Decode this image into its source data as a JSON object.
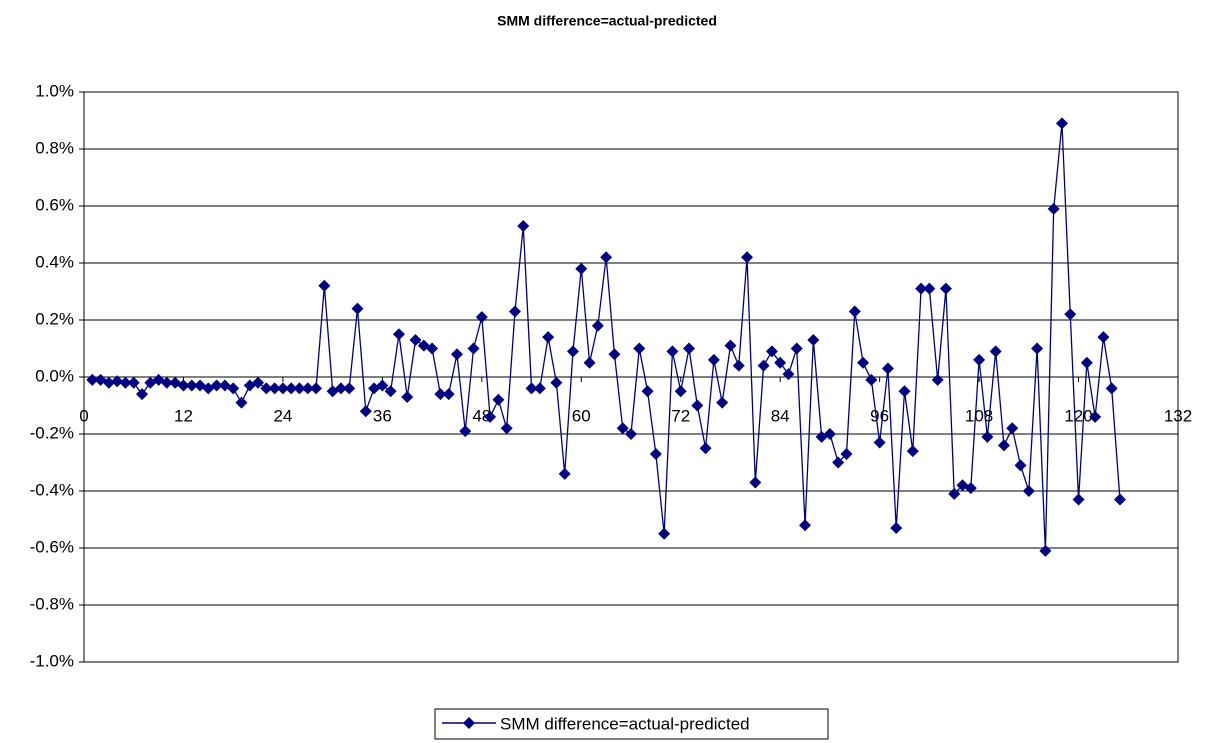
{
  "chart_data": {
    "type": "line",
    "title": "SMM difference=actual-predicted",
    "x": [
      1,
      2,
      3,
      4,
      5,
      6,
      7,
      8,
      9,
      10,
      11,
      12,
      13,
      14,
      15,
      16,
      17,
      18,
      19,
      20,
      21,
      22,
      23,
      24,
      25,
      26,
      27,
      28,
      29,
      30,
      31,
      32,
      33,
      34,
      35,
      36,
      37,
      38,
      39,
      40,
      41,
      42,
      43,
      44,
      45,
      46,
      47,
      48,
      49,
      50,
      51,
      52,
      53,
      54,
      55,
      56,
      57,
      58,
      59,
      60,
      61,
      62,
      63,
      64,
      65,
      66,
      67,
      68,
      69,
      70,
      71,
      72,
      73,
      74,
      75,
      76,
      77,
      78,
      79,
      80,
      81,
      82,
      83,
      84,
      85,
      86,
      87,
      88,
      89,
      90,
      91,
      92,
      93,
      94,
      95,
      96,
      97,
      98,
      99,
      100,
      101,
      102,
      103,
      104,
      105,
      106,
      107,
      108,
      109,
      110,
      111,
      112,
      113,
      114,
      115,
      116,
      117,
      118,
      119,
      120,
      121,
      122,
      123,
      124,
      125
    ],
    "series": [
      {
        "name": "SMM difference=actual-predicted",
        "color": "#000080",
        "values": [
          -0.01,
          -0.01,
          -0.02,
          -0.015,
          -0.02,
          -0.02,
          -0.06,
          -0.02,
          -0.01,
          -0.02,
          -0.02,
          -0.03,
          -0.03,
          -0.03,
          -0.04,
          -0.03,
          -0.03,
          -0.04,
          -0.09,
          -0.03,
          -0.02,
          -0.04,
          -0.04,
          -0.04,
          -0.04,
          -0.04,
          -0.04,
          -0.04,
          0.32,
          -0.05,
          -0.04,
          -0.04,
          0.24,
          -0.12,
          -0.04,
          -0.03,
          -0.05,
          0.15,
          -0.07,
          0.13,
          0.11,
          0.1,
          -0.06,
          -0.06,
          0.08,
          -0.19,
          0.1,
          0.21,
          -0.14,
          -0.08,
          -0.18,
          0.23,
          0.53,
          -0.04,
          -0.04,
          0.14,
          -0.02,
          -0.34,
          0.09,
          0.38,
          0.05,
          0.18,
          0.42,
          0.08,
          -0.18,
          -0.2,
          0.1,
          -0.05,
          -0.27,
          -0.55,
          0.09,
          -0.05,
          0.1,
          -0.1,
          -0.25,
          0.06,
          -0.09,
          0.11,
          0.04,
          0.42,
          -0.37,
          0.04,
          0.09,
          0.05,
          0.01,
          0.1,
          -0.52,
          0.13,
          -0.21,
          -0.2,
          -0.3,
          -0.27,
          0.23,
          0.05,
          -0.01,
          -0.23,
          0.03,
          -0.53,
          -0.05,
          -0.26,
          0.31,
          0.31,
          -0.01,
          0.31,
          -0.41,
          -0.38,
          -0.39,
          0.06,
          -0.21,
          0.09,
          -0.24,
          -0.18,
          -0.31,
          -0.4,
          0.1,
          -0.61,
          0.59,
          0.89,
          0.22,
          -0.43,
          0.05,
          -0.14,
          0.14,
          -0.04,
          -0.43
        ]
      }
    ],
    "xlim": [
      0,
      132
    ],
    "xticks": [
      0,
      12,
      24,
      36,
      48,
      60,
      72,
      84,
      96,
      108,
      120,
      132
    ],
    "ylim": [
      -1.0,
      1.0
    ],
    "yticks": [
      {
        "value": -1.0,
        "label": "-1.0%"
      },
      {
        "value": -0.8,
        "label": "-0.8%"
      },
      {
        "value": -0.6,
        "label": "-0.6%"
      },
      {
        "value": -0.4,
        "label": "-0.4%"
      },
      {
        "value": -0.2,
        "label": "-0.2%"
      },
      {
        "value": 0,
        "label": "0.0%"
      },
      {
        "value": 0.2,
        "label": "0.2%"
      },
      {
        "value": 0.4,
        "label": "0.4%"
      },
      {
        "value": 0.6,
        "label": "0.6%"
      },
      {
        "value": 0.8,
        "label": "0.8%"
      },
      {
        "value": 1.0,
        "label": "1.0%"
      }
    ],
    "grid": true,
    "legend": "bottom"
  }
}
